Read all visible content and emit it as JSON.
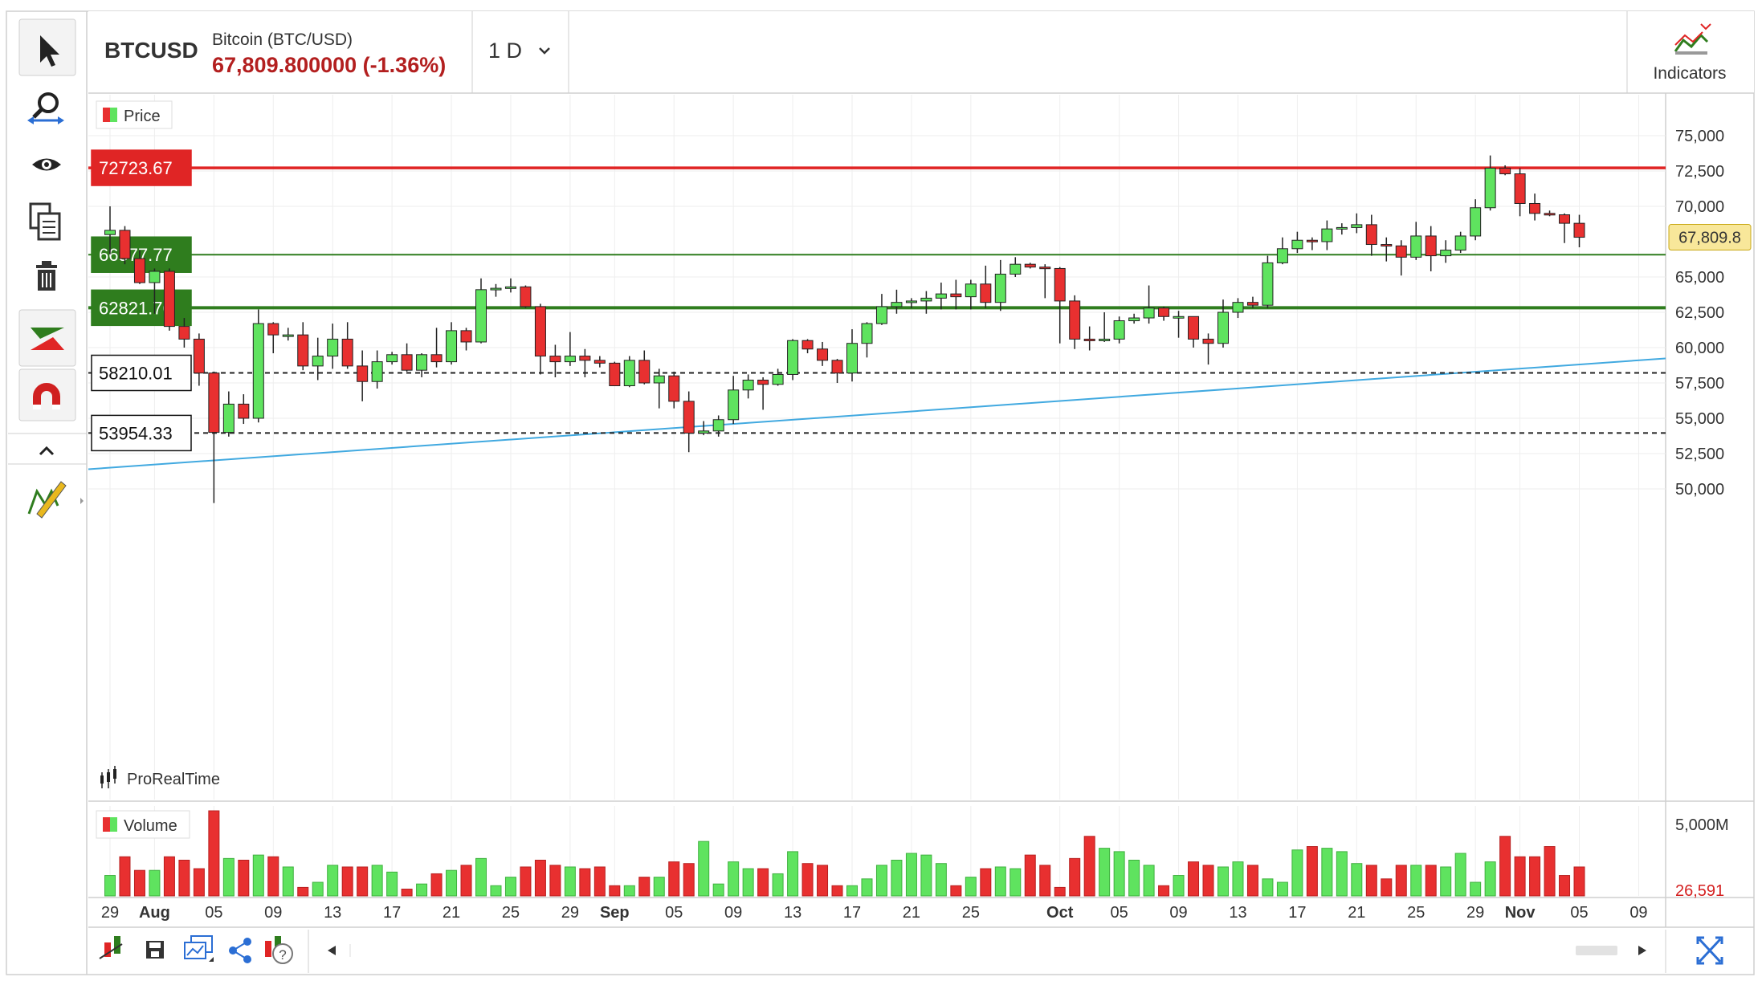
{
  "header": {
    "symbol": "BTCUSD",
    "name": "Bitcoin (BTC/USD)",
    "price_change": "67,809.800000 (-1.36%)",
    "timeframe": "1 D",
    "indicators_label": "Indicators"
  },
  "colors": {
    "up": "#5fe35f",
    "down": "#e83030",
    "resistance": "#e02525",
    "support": "#2f7d1e",
    "trend": "#41a9e0",
    "price_tag": "#f8e79a",
    "frame": "#cfcfcf",
    "grid": "#eeeeee"
  },
  "toolbar_left": {
    "icons": [
      "pointer-icon",
      "zoom-icon",
      "eye-icon",
      "copy-icon",
      "trash-icon",
      "trend-tool-icon",
      "magnet-icon",
      "collapse-icon",
      "drawing-pencil-icon"
    ]
  },
  "toolbar_bottom": {
    "icons": [
      "chart-settings-icon",
      "save-icon",
      "layouts-icon",
      "share-icon",
      "alert-icon",
      "scroll-left-icon",
      "scroll-right-icon",
      "fullscreen-icon"
    ]
  },
  "price_panel": {
    "legend": "Price",
    "watermark": "ProRealTime",
    "current_price_tag": "67,809.8"
  },
  "volume_panel": {
    "legend": "Volume",
    "top_label": "5,000M",
    "current_volume": "26,591"
  },
  "levels": [
    {
      "label": "72723.67",
      "value": 72723.67,
      "style": "resistance"
    },
    {
      "label": "66577.77",
      "value": 66577.77,
      "style": "support-thin"
    },
    {
      "label": "62821.76",
      "value": 62821.76,
      "style": "support-thick"
    },
    {
      "label": "58210.01",
      "value": 58210.01,
      "style": "dashed"
    },
    {
      "label": "53954.33",
      "value": 53954.33,
      "style": "dashed"
    }
  ],
  "chart_data": {
    "type": "candlestick",
    "y_axis_ticks": [
      "75,000",
      "72,500",
      "70,000",
      "65,000",
      "62,500",
      "60,000",
      "57,500",
      "55,000",
      "52,500",
      "50,000"
    ],
    "y_tick_values": [
      75000,
      72500,
      70000,
      65000,
      62500,
      60000,
      57500,
      55000,
      52500,
      50000
    ],
    "ylim": [
      47300,
      76500
    ],
    "x_axis_ticks": [
      "29",
      "Aug",
      "05",
      "09",
      "13",
      "17",
      "21",
      "25",
      "29",
      "Sep",
      "05",
      "09",
      "13",
      "17",
      "21",
      "25",
      "Oct",
      "05",
      "09",
      "13",
      "17",
      "21",
      "25",
      "29",
      "Nov",
      "05",
      "09"
    ],
    "x_tick_dates": [
      "2024-07-29",
      "2024-08-01",
      "2024-08-05",
      "2024-08-09",
      "2024-08-13",
      "2024-08-17",
      "2024-08-21",
      "2024-08-25",
      "2024-08-29",
      "2024-09-01",
      "2024-09-05",
      "2024-09-09",
      "2024-09-13",
      "2024-09-17",
      "2024-09-21",
      "2024-09-25",
      "2024-10-01",
      "2024-10-05",
      "2024-10-09",
      "2024-10-13",
      "2024-10-17",
      "2024-10-21",
      "2024-10-25",
      "2024-10-29",
      "2024-11-01",
      "2024-11-05",
      "2024-11-09"
    ],
    "bold_x_ticks": [
      "Aug",
      "Sep",
      "Oct",
      "Nov"
    ],
    "trend_line": {
      "from": {
        "date": "2024-07-29",
        "price": 51500
      },
      "to": {
        "date": "2024-11-09",
        "price": 59100
      }
    },
    "candles": [
      {
        "date": "2024-07-29",
        "o": 68000,
        "h": 70000,
        "l": 66600,
        "c": 68300
      },
      {
        "date": "2024-07-30",
        "o": 68300,
        "h": 68600,
        "l": 65900,
        "c": 66300
      },
      {
        "date": "2024-07-31",
        "o": 66300,
        "h": 66900,
        "l": 64500,
        "c": 64600
      },
      {
        "date": "2024-08-01",
        "o": 64600,
        "h": 65600,
        "l": 62400,
        "c": 65400
      },
      {
        "date": "2024-08-02",
        "o": 65400,
        "h": 65600,
        "l": 61200,
        "c": 61500
      },
      {
        "date": "2024-08-03",
        "o": 61500,
        "h": 62100,
        "l": 60000,
        "c": 60600
      },
      {
        "date": "2024-08-04",
        "o": 60600,
        "h": 61000,
        "l": 57300,
        "c": 58200
      },
      {
        "date": "2024-08-05",
        "o": 58200,
        "h": 58300,
        "l": 49000,
        "c": 54000
      },
      {
        "date": "2024-08-06",
        "o": 54000,
        "h": 56900,
        "l": 53700,
        "c": 56000
      },
      {
        "date": "2024-08-07",
        "o": 56000,
        "h": 56700,
        "l": 54600,
        "c": 55000
      },
      {
        "date": "2024-08-08",
        "o": 55000,
        "h": 62700,
        "l": 54700,
        "c": 61700
      },
      {
        "date": "2024-08-09",
        "o": 61700,
        "h": 61800,
        "l": 59600,
        "c": 60900
      },
      {
        "date": "2024-08-10",
        "o": 60900,
        "h": 61400,
        "l": 60500,
        "c": 60900
      },
      {
        "date": "2024-08-11",
        "o": 60900,
        "h": 61800,
        "l": 58400,
        "c": 58700
      },
      {
        "date": "2024-08-12",
        "o": 58700,
        "h": 60700,
        "l": 57700,
        "c": 59400
      },
      {
        "date": "2024-08-13",
        "o": 59400,
        "h": 61700,
        "l": 58500,
        "c": 60600
      },
      {
        "date": "2024-08-14",
        "o": 60600,
        "h": 61800,
        "l": 58500,
        "c": 58700
      },
      {
        "date": "2024-08-15",
        "o": 58700,
        "h": 59800,
        "l": 56200,
        "c": 57600
      },
      {
        "date": "2024-08-16",
        "o": 57600,
        "h": 59800,
        "l": 57100,
        "c": 59000
      },
      {
        "date": "2024-08-17",
        "o": 59000,
        "h": 59700,
        "l": 58800,
        "c": 59500
      },
      {
        "date": "2024-08-18",
        "o": 59500,
        "h": 60300,
        "l": 58300,
        "c": 58400
      },
      {
        "date": "2024-08-19",
        "o": 58400,
        "h": 59600,
        "l": 57900,
        "c": 59500
      },
      {
        "date": "2024-08-20",
        "o": 59500,
        "h": 61400,
        "l": 58600,
        "c": 59000
      },
      {
        "date": "2024-08-21",
        "o": 59000,
        "h": 61800,
        "l": 58800,
        "c": 61200
      },
      {
        "date": "2024-08-22",
        "o": 61200,
        "h": 61400,
        "l": 59800,
        "c": 60400
      },
      {
        "date": "2024-08-23",
        "o": 60400,
        "h": 64900,
        "l": 60300,
        "c": 64100
      },
      {
        "date": "2024-08-24",
        "o": 64100,
        "h": 64500,
        "l": 63600,
        "c": 64200
      },
      {
        "date": "2024-08-25",
        "o": 64200,
        "h": 64900,
        "l": 63900,
        "c": 64300
      },
      {
        "date": "2024-08-26",
        "o": 64300,
        "h": 64400,
        "l": 62800,
        "c": 62900
      },
      {
        "date": "2024-08-27",
        "o": 62900,
        "h": 63100,
        "l": 58100,
        "c": 59400
      },
      {
        "date": "2024-08-28",
        "o": 59400,
        "h": 60200,
        "l": 57900,
        "c": 59000
      },
      {
        "date": "2024-08-29",
        "o": 59000,
        "h": 61100,
        "l": 58700,
        "c": 59400
      },
      {
        "date": "2024-08-30",
        "o": 59400,
        "h": 59900,
        "l": 57900,
        "c": 59100
      },
      {
        "date": "2024-08-31",
        "o": 59100,
        "h": 59400,
        "l": 58600,
        "c": 58900
      },
      {
        "date": "2024-09-01",
        "o": 58900,
        "h": 59000,
        "l": 57300,
        "c": 57300
      },
      {
        "date": "2024-09-02",
        "o": 57300,
        "h": 59400,
        "l": 57200,
        "c": 59100
      },
      {
        "date": "2024-09-03",
        "o": 59100,
        "h": 59800,
        "l": 57400,
        "c": 57500
      },
      {
        "date": "2024-09-04",
        "o": 57500,
        "h": 58500,
        "l": 55700,
        "c": 58000
      },
      {
        "date": "2024-09-05",
        "o": 58000,
        "h": 58300,
        "l": 55700,
        "c": 56200
      },
      {
        "date": "2024-09-06",
        "o": 56200,
        "h": 56900,
        "l": 52600,
        "c": 53950
      },
      {
        "date": "2024-09-07",
        "o": 53950,
        "h": 54800,
        "l": 53800,
        "c": 54100
      },
      {
        "date": "2024-09-08",
        "o": 54100,
        "h": 55200,
        "l": 53700,
        "c": 54900
      },
      {
        "date": "2024-09-09",
        "o": 54900,
        "h": 58000,
        "l": 54600,
        "c": 57000
      },
      {
        "date": "2024-09-10",
        "o": 57000,
        "h": 58100,
        "l": 56400,
        "c": 57700
      },
      {
        "date": "2024-09-11",
        "o": 57700,
        "h": 57900,
        "l": 55600,
        "c": 57400
      },
      {
        "date": "2024-09-12",
        "o": 57400,
        "h": 58500,
        "l": 57300,
        "c": 58100
      },
      {
        "date": "2024-09-13",
        "o": 58100,
        "h": 60600,
        "l": 57700,
        "c": 60500
      },
      {
        "date": "2024-09-14",
        "o": 60500,
        "h": 60600,
        "l": 59600,
        "c": 59900
      },
      {
        "date": "2024-09-15",
        "o": 59900,
        "h": 60400,
        "l": 58700,
        "c": 59100
      },
      {
        "date": "2024-09-16",
        "o": 59100,
        "h": 59200,
        "l": 57500,
        "c": 58200
      },
      {
        "date": "2024-09-17",
        "o": 58200,
        "h": 61300,
        "l": 57600,
        "c": 60300
      },
      {
        "date": "2024-09-18",
        "o": 60300,
        "h": 61800,
        "l": 59300,
        "c": 61700
      },
      {
        "date": "2024-09-19",
        "o": 61700,
        "h": 63800,
        "l": 61600,
        "c": 62900
      },
      {
        "date": "2024-09-20",
        "o": 62900,
        "h": 64100,
        "l": 62400,
        "c": 63200
      },
      {
        "date": "2024-09-21",
        "o": 63200,
        "h": 63500,
        "l": 62800,
        "c": 63300
      },
      {
        "date": "2024-09-22",
        "o": 63300,
        "h": 64000,
        "l": 62400,
        "c": 63500
      },
      {
        "date": "2024-09-23",
        "o": 63500,
        "h": 64600,
        "l": 62700,
        "c": 63800
      },
      {
        "date": "2024-09-24",
        "o": 63800,
        "h": 64800,
        "l": 62700,
        "c": 63600
      },
      {
        "date": "2024-09-25",
        "o": 63600,
        "h": 64800,
        "l": 62700,
        "c": 64500
      },
      {
        "date": "2024-09-26",
        "o": 64500,
        "h": 65800,
        "l": 62800,
        "c": 63200
      },
      {
        "date": "2024-09-27",
        "o": 63200,
        "h": 66200,
        "l": 62600,
        "c": 65200
      },
      {
        "date": "2024-09-28",
        "o": 65200,
        "h": 66400,
        "l": 65000,
        "c": 65900
      },
      {
        "date": "2024-09-29",
        "o": 65900,
        "h": 66000,
        "l": 65600,
        "c": 65700
      },
      {
        "date": "2024-09-30",
        "o": 65700,
        "h": 65900,
        "l": 63500,
        "c": 65600
      },
      {
        "date": "2024-10-01",
        "o": 65600,
        "h": 65700,
        "l": 60300,
        "c": 63300
      },
      {
        "date": "2024-10-02",
        "o": 63300,
        "h": 63700,
        "l": 59900,
        "c": 60600
      },
      {
        "date": "2024-10-03",
        "o": 60600,
        "h": 61500,
        "l": 59800,
        "c": 60500
      },
      {
        "date": "2024-10-04",
        "o": 60500,
        "h": 62500,
        "l": 60400,
        "c": 60600
      },
      {
        "date": "2024-10-05",
        "o": 60600,
        "h": 62200,
        "l": 60300,
        "c": 61900
      },
      {
        "date": "2024-10-06",
        "o": 61900,
        "h": 62400,
        "l": 61700,
        "c": 62100
      },
      {
        "date": "2024-10-07",
        "o": 62100,
        "h": 64400,
        "l": 61700,
        "c": 62800
      },
      {
        "date": "2024-10-08",
        "o": 62800,
        "h": 62900,
        "l": 61900,
        "c": 62200
      },
      {
        "date": "2024-10-09",
        "o": 62200,
        "h": 62600,
        "l": 60700,
        "c": 62200
      },
      {
        "date": "2024-10-10",
        "o": 62200,
        "h": 62200,
        "l": 60000,
        "c": 60600
      },
      {
        "date": "2024-10-11",
        "o": 60600,
        "h": 61000,
        "l": 58800,
        "c": 60300
      },
      {
        "date": "2024-10-12",
        "o": 60300,
        "h": 63400,
        "l": 60000,
        "c": 62500
      },
      {
        "date": "2024-10-13",
        "o": 62500,
        "h": 63500,
        "l": 62100,
        "c": 63200
      },
      {
        "date": "2024-10-14",
        "o": 63200,
        "h": 63600,
        "l": 62800,
        "c": 63000
      },
      {
        "date": "2024-10-15",
        "o": 63000,
        "h": 66500,
        "l": 62800,
        "c": 66000
      },
      {
        "date": "2024-10-16",
        "o": 66000,
        "h": 67800,
        "l": 65900,
        "c": 67000
      },
      {
        "date": "2024-10-17",
        "o": 67000,
        "h": 68200,
        "l": 66700,
        "c": 67600
      },
      {
        "date": "2024-10-18",
        "o": 67600,
        "h": 67800,
        "l": 66900,
        "c": 67500
      },
      {
        "date": "2024-10-19",
        "o": 67500,
        "h": 69000,
        "l": 66900,
        "c": 68400
      },
      {
        "date": "2024-10-20",
        "o": 68400,
        "h": 68800,
        "l": 68000,
        "c": 68500
      },
      {
        "date": "2024-10-21",
        "o": 68500,
        "h": 69500,
        "l": 68100,
        "c": 68700
      },
      {
        "date": "2024-10-22",
        "o": 68700,
        "h": 69400,
        "l": 66500,
        "c": 67300
      },
      {
        "date": "2024-10-23",
        "o": 67300,
        "h": 67800,
        "l": 66100,
        "c": 67200
      },
      {
        "date": "2024-10-24",
        "o": 67200,
        "h": 67600,
        "l": 65100,
        "c": 66400
      },
      {
        "date": "2024-10-25",
        "o": 66400,
        "h": 68900,
        "l": 66200,
        "c": 67900
      },
      {
        "date": "2024-10-26",
        "o": 67900,
        "h": 68600,
        "l": 65400,
        "c": 66500
      },
      {
        "date": "2024-10-27",
        "o": 66500,
        "h": 67600,
        "l": 66000,
        "c": 66900
      },
      {
        "date": "2024-10-28",
        "o": 66900,
        "h": 68200,
        "l": 66700,
        "c": 67900
      },
      {
        "date": "2024-10-29",
        "o": 67900,
        "h": 70500,
        "l": 67600,
        "c": 69900
      },
      {
        "date": "2024-10-30",
        "o": 69900,
        "h": 73600,
        "l": 69700,
        "c": 72700
      },
      {
        "date": "2024-10-31",
        "o": 72700,
        "h": 72900,
        "l": 72200,
        "c": 72300
      },
      {
        "date": "2024-11-01",
        "o": 72300,
        "h": 72700,
        "l": 69300,
        "c": 70200
      },
      {
        "date": "2024-11-02",
        "o": 70200,
        "h": 70900,
        "l": 69000,
        "c": 69500
      },
      {
        "date": "2024-11-03",
        "o": 69500,
        "h": 69700,
        "l": 69300,
        "c": 69400
      },
      {
        "date": "2024-11-04",
        "o": 69400,
        "h": 69500,
        "l": 67400,
        "c": 68800
      },
      {
        "date": "2024-11-05",
        "o": 68800,
        "h": 69400,
        "l": 67100,
        "c": 67810
      }
    ],
    "volumes": [
      1200,
      2300,
      1500,
      1500,
      2300,
      2100,
      1600,
      5000,
      2200,
      2100,
      2400,
      2300,
      1700,
      500,
      800,
      1800,
      1700,
      1700,
      1800,
      1400,
      400,
      700,
      1300,
      1500,
      1800,
      2200,
      600,
      1100,
      1700,
      2100,
      1800,
      1700,
      1600,
      1700,
      600,
      600,
      1100,
      1100,
      2000,
      1900,
      3200,
      700,
      2000,
      1600,
      1600,
      1300,
      2600,
      1900,
      1800,
      600,
      600,
      1000,
      1800,
      2100,
      2500,
      2400,
      1900,
      600,
      1100,
      1600,
      1700,
      1600,
      2400,
      1800,
      500,
      2200,
      3500,
      2800,
      2600,
      2100,
      1800,
      600,
      1200,
      2000,
      1800,
      1700,
      2000,
      1800,
      1000,
      800,
      2700,
      2900,
      2800,
      2600,
      1900,
      1800,
      1000,
      1800,
      1800,
      1800,
      1700,
      2500,
      800,
      2000,
      3500,
      2300,
      2300,
      2900,
      1200,
      1700,
      26
    ]
  }
}
